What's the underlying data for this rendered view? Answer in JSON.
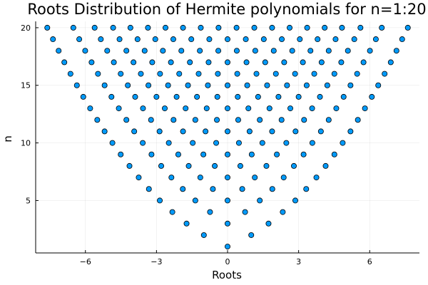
{
  "chart_data": {
    "type": "scatter",
    "title": "Roots Distribution of Hermite polynomials for n=1:20",
    "xlabel": "Roots",
    "ylabel": "n",
    "xlim": [
      -8.1,
      8.1
    ],
    "ylim": [
      0.45,
      20.55
    ],
    "xticks": [
      -6,
      -3,
      0,
      3,
      6
    ],
    "xtick_labels": [
      "−6",
      "−3",
      "0",
      "3",
      "6"
    ],
    "yticks": [
      5,
      10,
      15,
      20
    ],
    "ytick_labels": [
      "5",
      "10",
      "15",
      "20"
    ],
    "grid": true,
    "legend": "none",
    "series": [
      {
        "color": "#009AFA",
        "points": [
          {
            "n": 1,
            "roots": [
              0
            ]
          },
          {
            "n": 2,
            "roots": [
              -1.0,
              1.0
            ]
          },
          {
            "n": 3,
            "roots": [
              -1.73,
              0,
              1.73
            ]
          },
          {
            "n": 4,
            "roots": [
              -2.33,
              -0.74,
              0.74,
              2.33
            ]
          },
          {
            "n": 5,
            "roots": [
              -2.86,
              -1.36,
              0,
              1.36,
              2.86
            ]
          },
          {
            "n": 6,
            "roots": [
              -3.32,
              -1.89,
              -0.62,
              0.62,
              1.89,
              3.32
            ]
          },
          {
            "n": 7,
            "roots": [
              -3.75,
              -2.37,
              -1.15,
              0,
              1.15,
              2.37,
              3.75
            ]
          },
          {
            "n": 8,
            "roots": [
              -4.14,
              -2.8,
              -1.64,
              -0.54,
              0.54,
              1.64,
              2.8,
              4.14
            ]
          },
          {
            "n": 9,
            "roots": [
              -4.51,
              -3.21,
              -2.08,
              -1.02,
              0,
              1.02,
              2.08,
              3.21,
              4.51
            ]
          },
          {
            "n": 10,
            "roots": [
              -4.86,
              -3.58,
              -2.48,
              -1.47,
              -0.48,
              0.48,
              1.47,
              2.48,
              3.58,
              4.86
            ]
          },
          {
            "n": 11,
            "roots": [
              -5.19,
              -3.94,
              -2.87,
              -1.88,
              -0.93,
              0,
              0.93,
              1.88,
              2.87,
              3.94,
              5.19
            ]
          },
          {
            "n": 12,
            "roots": [
              -5.5,
              -4.27,
              -3.23,
              -2.28,
              -1.36,
              -0.45,
              0.45,
              1.36,
              2.28,
              3.23,
              4.27,
              5.5
            ]
          },
          {
            "n": 13,
            "roots": [
              -5.8,
              -4.59,
              -3.57,
              -2.65,
              -1.77,
              -0.88,
              0,
              0.88,
              1.77,
              2.65,
              3.57,
              4.59,
              5.8
            ]
          },
          {
            "n": 14,
            "roots": [
              -6.09,
              -4.9,
              -3.9,
              -3.0,
              -2.15,
              -1.29,
              -0.43,
              0.43,
              1.29,
              2.15,
              3.0,
              3.9,
              4.9,
              6.09
            ]
          },
          {
            "n": 15,
            "roots": [
              -6.36,
              -5.19,
              -4.21,
              -3.34,
              -2.51,
              -1.67,
              -0.83,
              0,
              0.83,
              1.67,
              2.51,
              3.34,
              4.21,
              5.19,
              6.36
            ]
          },
          {
            "n": 16,
            "roots": [
              -6.63,
              -5.47,
              -4.51,
              -3.66,
              -2.85,
              -2.04,
              -1.22,
              -0.41,
              0.41,
              1.22,
              2.04,
              2.85,
              3.66,
              4.51,
              5.47,
              6.63
            ]
          },
          {
            "n": 17,
            "roots": [
              -6.89,
              -5.74,
              -4.8,
              -3.97,
              -3.18,
              -2.39,
              -1.59,
              -0.8,
              0,
              0.8,
              1.59,
              2.39,
              3.18,
              3.97,
              4.8,
              5.74,
              6.89
            ]
          },
          {
            "n": 18,
            "roots": [
              -7.13,
              -6.01,
              -5.08,
              -4.27,
              -3.5,
              -2.73,
              -1.95,
              -1.17,
              -0.39,
              0.39,
              1.17,
              1.95,
              2.73,
              3.5,
              4.27,
              5.08,
              6.01,
              7.13
            ]
          },
          {
            "n": 19,
            "roots": [
              -7.37,
              -6.26,
              -5.35,
              -4.56,
              -3.8,
              -3.05,
              -2.29,
              -1.53,
              -0.77,
              0,
              0.77,
              1.53,
              2.29,
              3.05,
              3.8,
              4.56,
              5.35,
              6.26,
              7.37
            ]
          },
          {
            "n": 20,
            "roots": [
              -7.61,
              -6.51,
              -5.61,
              -4.83,
              -4.1,
              -3.36,
              -2.62,
              -1.88,
              -1.13,
              -0.38,
              0.38,
              1.13,
              1.88,
              2.62,
              3.36,
              4.1,
              4.83,
              5.61,
              6.51,
              7.61
            ]
          }
        ]
      }
    ]
  }
}
